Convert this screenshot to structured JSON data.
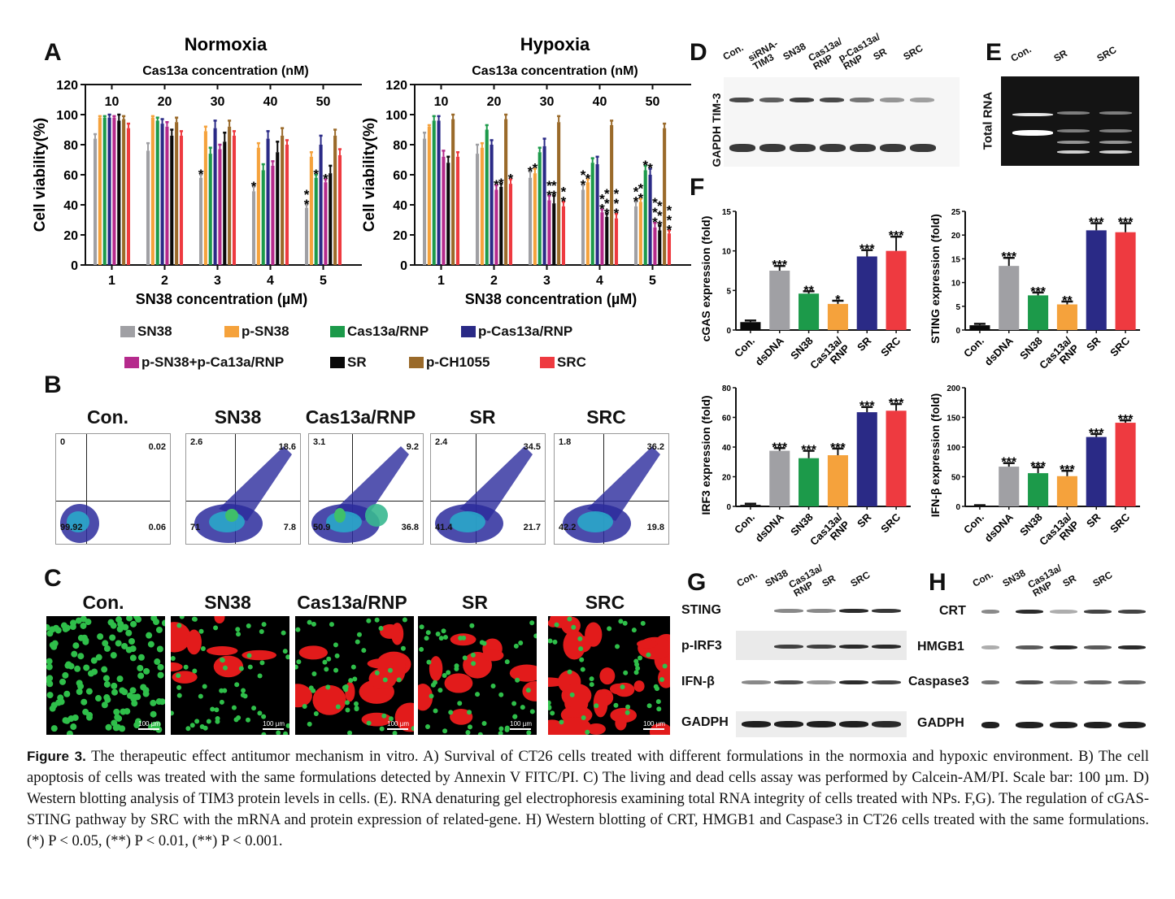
{
  "panels": {
    "A": "A",
    "B": "B",
    "C": "C",
    "D": "D",
    "E": "E",
    "F": "F",
    "G": "G",
    "H": "H"
  },
  "colors": {
    "SN38": "#a0a0a4",
    "p-SN38": "#f5a23c",
    "Cas13a/RNP": "#1c9a4a",
    "p-Cas13a/RNP": "#2a2a86",
    "p-SN38+p-Ca13a/RNP": "#b52a8c",
    "SR": "#0a0a0a",
    "p-CH1055": "#9a6a2a",
    "SRC": "#ee3a40",
    "Con.": "#0a0a0a",
    "dsDNA": "#a0a0a4"
  },
  "chart_data": [
    {
      "id": "A-normoxia",
      "type": "bar",
      "title": "Normoxia",
      "top_axis_label": "Cas13a concentration (nM)",
      "top_tick_labels": [
        "10",
        "20",
        "30",
        "40",
        "50"
      ],
      "xlabel": "SN38 concentration (µM)",
      "ylabel": "Cell viability(%)",
      "categories": [
        "1",
        "2",
        "3",
        "4",
        "5"
      ],
      "ylim": [
        0,
        120
      ],
      "yticks": [
        0,
        20,
        40,
        60,
        80,
        100,
        120
      ],
      "series": [
        {
          "name": "SN38",
          "values": [
            84,
            76,
            58,
            49,
            38
          ],
          "err": [
            3,
            5,
            2,
            3,
            2
          ],
          "sig": [
            "",
            "",
            "*",
            "*",
            "**"
          ]
        },
        {
          "name": "p-SN38",
          "values": [
            98,
            98,
            89,
            78,
            72
          ],
          "err": [
            1,
            1,
            3,
            3,
            3
          ],
          "sig": [
            "",
            "",
            "",
            "",
            ""
          ]
        },
        {
          "name": "Cas13a/RNP",
          "values": [
            98,
            96,
            74,
            63,
            58
          ],
          "err": [
            1,
            2,
            4,
            4,
            2
          ],
          "sig": [
            "",
            "",
            "",
            "",
            "*"
          ]
        },
        {
          "name": "p-Cas13a/RNP",
          "values": [
            98,
            94,
            91,
            84,
            80
          ],
          "err": [
            2,
            3,
            5,
            5,
            6
          ],
          "sig": [
            "",
            "",
            "",
            "",
            ""
          ]
        },
        {
          "name": "p-SN38+p-Ca13a/RNP",
          "values": [
            98,
            92,
            77,
            66,
            55
          ],
          "err": [
            1,
            3,
            3,
            3,
            2
          ],
          "sig": [
            "",
            "",
            "",
            "",
            "*"
          ]
        },
        {
          "name": "SR",
          "values": [
            96,
            86,
            82,
            75,
            61
          ],
          "err": [
            4,
            4,
            6,
            7,
            5
          ],
          "sig": [
            "",
            "",
            "",
            "",
            ""
          ]
        },
        {
          "name": "p-CH1055",
          "values": [
            97,
            95,
            92,
            86,
            86
          ],
          "err": [
            2,
            3,
            4,
            5,
            4
          ],
          "sig": [
            "",
            "",
            "",
            "",
            ""
          ]
        },
        {
          "name": "SRC",
          "values": [
            91,
            86,
            86,
            80,
            73
          ],
          "err": [
            3,
            3,
            3,
            3,
            4
          ],
          "sig": [
            "",
            "",
            "",
            "",
            ""
          ]
        }
      ]
    },
    {
      "id": "A-hypoxia",
      "type": "bar",
      "title": "Hypoxia",
      "top_axis_label": "Cas13a concentration (nM)",
      "top_tick_labels": [
        "10",
        "20",
        "30",
        "40",
        "50"
      ],
      "xlabel": "SN38 concentration (µM)",
      "ylabel": "Cell viability(%)",
      "categories": [
        "1",
        "2",
        "3",
        "4",
        "5"
      ],
      "ylim": [
        0,
        120
      ],
      "yticks": [
        0,
        20,
        40,
        60,
        80,
        100,
        120
      ],
      "series": [
        {
          "name": "SN38",
          "values": [
            84,
            74,
            58,
            50,
            39
          ],
          "err": [
            4,
            6,
            4,
            3,
            3
          ],
          "sig": [
            "",
            "",
            "*",
            "**",
            "**"
          ]
        },
        {
          "name": "p-SN38",
          "values": [
            92,
            78,
            61,
            55,
            42
          ],
          "err": [
            1,
            3,
            3,
            2,
            2
          ],
          "sig": [
            "",
            "",
            "*",
            "*",
            "**"
          ]
        },
        {
          "name": "Cas13a/RNP",
          "values": [
            96,
            90,
            75,
            68,
            63
          ],
          "err": [
            3,
            3,
            3,
            3,
            3
          ],
          "sig": [
            "",
            "",
            "",
            "",
            "*"
          ]
        },
        {
          "name": "p-Cas13a/RNP",
          "values": [
            96,
            80,
            79,
            67,
            60
          ],
          "err": [
            3,
            3,
            5,
            5,
            4
          ],
          "sig": [
            "",
            "",
            "",
            "",
            "*"
          ]
        },
        {
          "name": "p-SN38+p-Ca13a/RNP",
          "values": [
            72,
            50,
            43,
            35,
            25
          ],
          "err": [
            4,
            3,
            3,
            2,
            3
          ],
          "sig": [
            "",
            "*",
            "**",
            "**",
            "***"
          ]
        },
        {
          "name": "SR",
          "values": [
            68,
            52,
            41,
            32,
            23
          ],
          "err": [
            4,
            2,
            5,
            2,
            3
          ],
          "sig": [
            "",
            "*",
            "**",
            "***",
            "***"
          ]
        },
        {
          "name": "p-CH1055",
          "values": [
            97,
            97,
            95,
            93,
            91
          ],
          "err": [
            3,
            3,
            4,
            3,
            3
          ],
          "sig": [
            "",
            "",
            "",
            "",
            ""
          ]
        },
        {
          "name": "SRC",
          "values": [
            72,
            54,
            39,
            31,
            21
          ],
          "err": [
            3,
            3,
            3,
            3,
            2
          ],
          "sig": [
            "",
            "*",
            "**",
            "***",
            "***"
          ]
        }
      ]
    },
    {
      "id": "F-cgas",
      "type": "bar",
      "ylabel": "cGAS expression (fold)",
      "categories": [
        "Con.",
        "dsDNA",
        "SN38",
        "Cas13a/\nRNP",
        "SR",
        "SRC"
      ],
      "values": [
        1.0,
        7.5,
        4.6,
        3.3,
        9.3,
        10.0
      ],
      "err": [
        0.2,
        0.6,
        0.3,
        0.4,
        0.8,
        1.8
      ],
      "sig": [
        "",
        "***",
        "**",
        "*",
        "***",
        "***"
      ],
      "colors": [
        "#0a0a0a",
        "#a0a0a4",
        "#1c9a4a",
        "#f5a23c",
        "#2a2a86",
        "#ee3a40"
      ],
      "ylim": [
        0,
        15
      ],
      "yticks": [
        0,
        5,
        10,
        15
      ]
    },
    {
      "id": "F-sting",
      "type": "bar",
      "ylabel": "STING expression (fold)",
      "categories": [
        "Con.",
        "dsDNA",
        "SN38",
        "Cas13a/\nRNP",
        "SR",
        "SRC"
      ],
      "values": [
        1.0,
        13.5,
        7.3,
        5.4,
        21.0,
        20.6
      ],
      "err": [
        0.3,
        1.7,
        0.6,
        0.6,
        1.5,
        1.9
      ],
      "sig": [
        "",
        "***",
        "***",
        "**",
        "***",
        "***"
      ],
      "colors": [
        "#0a0a0a",
        "#a0a0a4",
        "#1c9a4a",
        "#f5a23c",
        "#2a2a86",
        "#ee3a40"
      ],
      "ylim": [
        0,
        25
      ],
      "yticks": [
        0,
        5,
        10,
        15,
        20,
        25
      ]
    },
    {
      "id": "F-irf3",
      "type": "bar",
      "ylabel": "IRF3 expression (fold)",
      "categories": [
        "Con.",
        "dsDNA",
        "SN38",
        "Cas13a/\nRNP",
        "SR",
        "SRC"
      ],
      "values": [
        1.0,
        37.5,
        32.5,
        34.5,
        63.5,
        64.5
      ],
      "err": [
        0.8,
        1.8,
        5.0,
        4.5,
        3.5,
        4.5
      ],
      "sig": [
        "",
        "***",
        "***",
        "***",
        "***",
        "***"
      ],
      "colors": [
        "#0a0a0a",
        "#a0a0a4",
        "#1c9a4a",
        "#f5a23c",
        "#2a2a86",
        "#ee3a40"
      ],
      "ylim": [
        0,
        80
      ],
      "yticks": [
        0,
        20,
        40,
        60,
        80
      ]
    },
    {
      "id": "F-ifnb",
      "type": "bar",
      "ylabel": "IFN-β expression (fold)",
      "categories": [
        "Con.",
        "dsDNA",
        "SN38",
        "Cas13a/\nRNP",
        "SR",
        "SRC"
      ],
      "values": [
        1.0,
        67,
        56,
        51,
        117,
        141
      ],
      "err": [
        1,
        6,
        10,
        9,
        5,
        4
      ],
      "sig": [
        "",
        "***",
        "***",
        "***",
        "***",
        "***"
      ],
      "colors": [
        "#0a0a0a",
        "#a0a0a4",
        "#1c9a4a",
        "#f5a23c",
        "#2a2a86",
        "#ee3a40"
      ],
      "ylim": [
        0,
        200
      ],
      "yticks": [
        0,
        50,
        100,
        150,
        200
      ]
    }
  ],
  "legend": [
    {
      "label": "SN38"
    },
    {
      "label": "p-SN38"
    },
    {
      "label": "Cas13a/RNP"
    },
    {
      "label": "p-Cas13a/RNP"
    },
    {
      "label": "p-SN38+p-Ca13a/RNP"
    },
    {
      "label": "SR"
    },
    {
      "label": "p-CH1055"
    },
    {
      "label": "SRC"
    }
  ],
  "flow": [
    {
      "title": "Con.",
      "ul": "0",
      "ur": "0.02",
      "ll": "99.92",
      "lr": "0.06"
    },
    {
      "title": "SN38",
      "ul": "2.6",
      "ur": "18.6",
      "ll": "71",
      "lr": "7.8"
    },
    {
      "title": "Cas13a/RNP",
      "ul": "3.1",
      "ur": "9.2",
      "ll": "50.9",
      "lr": "36.8"
    },
    {
      "title": "SR",
      "ul": "2.4",
      "ur": "34.5",
      "ll": "41.4",
      "lr": "21.7"
    },
    {
      "title": "SRC",
      "ul": "1.8",
      "ur": "36.2",
      "ll": "42.2",
      "lr": "19.8"
    }
  ],
  "microscopy": [
    {
      "title": "Con.",
      "scale": "100 µm"
    },
    {
      "title": "SN38",
      "scale": "100 µm"
    },
    {
      "title": "Cas13a/RNP",
      "scale": "100 µm"
    },
    {
      "title": "SR",
      "scale": "100 µm"
    },
    {
      "title": "SRC",
      "scale": "100 µm"
    }
  ],
  "blotD": {
    "lanes": [
      "Con.",
      "siRNA-\nTIM3",
      "SN38",
      "Cas13a/\nRNP",
      "p-Cas13a/\nRNP",
      "SR",
      "SRC"
    ],
    "row_label": "GAPDH TIM-3"
  },
  "gelE": {
    "lanes": [
      "Con.",
      "SR",
      "SRC"
    ],
    "row_label": "Total RNA"
  },
  "blotG": {
    "lanes": [
      "Con.",
      "SN38",
      "Cas13a/\nRNP",
      "SR",
      "SRC"
    ],
    "rows": [
      "STING",
      "p-IRF3",
      "IFN-β",
      "GADPH"
    ]
  },
  "blotH": {
    "lanes": [
      "Con.",
      "SN38",
      "Cas13a/\nRNP",
      "SR",
      "SRC"
    ],
    "rows": [
      "CRT",
      "HMGB1",
      "Caspase3",
      "GADPH"
    ]
  },
  "caption": {
    "label": "Figure 3.",
    "text": " The therapeutic effect antitumor mechanism in vitro. A) Survival of CT26 cells treated with different formulations in the normoxia and hypoxic environment. B) The cell apoptosis of cells was treated with the same formulations detected by Annexin V FITC/PI. C) The living and dead cells assay was performed by Calcein-AM/PI. Scale bar: 100 µm. D) Western blotting analysis of TIM3 protein levels in cells. (E). RNA denaturing gel electrophoresis examining total RNA integrity of cells treated with NPs. F,G). The regulation of cGAS-STING pathway by SRC with the mRNA and protein expression of related-gene. H) Western blotting of CRT, HMGB1 and Caspase3 in CT26 cells treated with the same formulations. (*) P < 0.05, (**) P < 0.01, (**) P < 0.001."
  }
}
